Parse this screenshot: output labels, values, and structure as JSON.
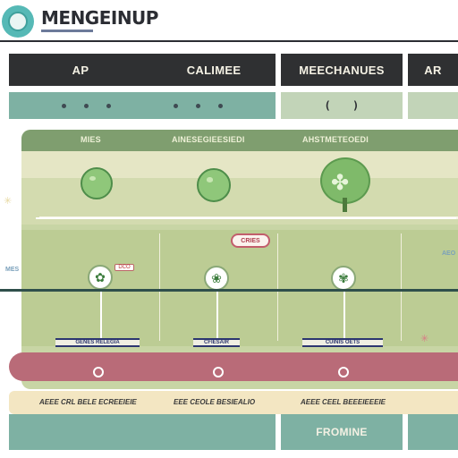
{
  "header": {
    "brand": "MENGEINUP",
    "logo_icon": "ring-logo-icon"
  },
  "top_bars": {
    "bar1": "AP",
    "bar2": "CALIMEE",
    "bar3": "MEECHANUES",
    "bar4": "AR"
  },
  "panel": {
    "col1_title": "MIES",
    "col2_title": "AINESEGIEESIEDI",
    "col3_title": "AHSTMETEOEDI",
    "bubble_label": "CRIES",
    "small_tag": "DCO",
    "side_left": "MES",
    "side_right": "AEO"
  },
  "chips": [
    "GENES RELEGIA",
    "CFIESAIR",
    "CUINIS OETS"
  ],
  "footer": {
    "col1": "AEEE CRL BELE ECREEIEIE",
    "col2": "EEE CEOLE BESIEALIO",
    "col3": "AEEE CEEL BEEEIEEEIE",
    "button": "FROMINE"
  },
  "colors": {
    "dark": "#2f3032",
    "mint": "#7eb1a3",
    "sage": "#c2d4b8",
    "olive": "#7f9e6f",
    "berry": "#b96b78",
    "cream": "#f3e6c2"
  }
}
